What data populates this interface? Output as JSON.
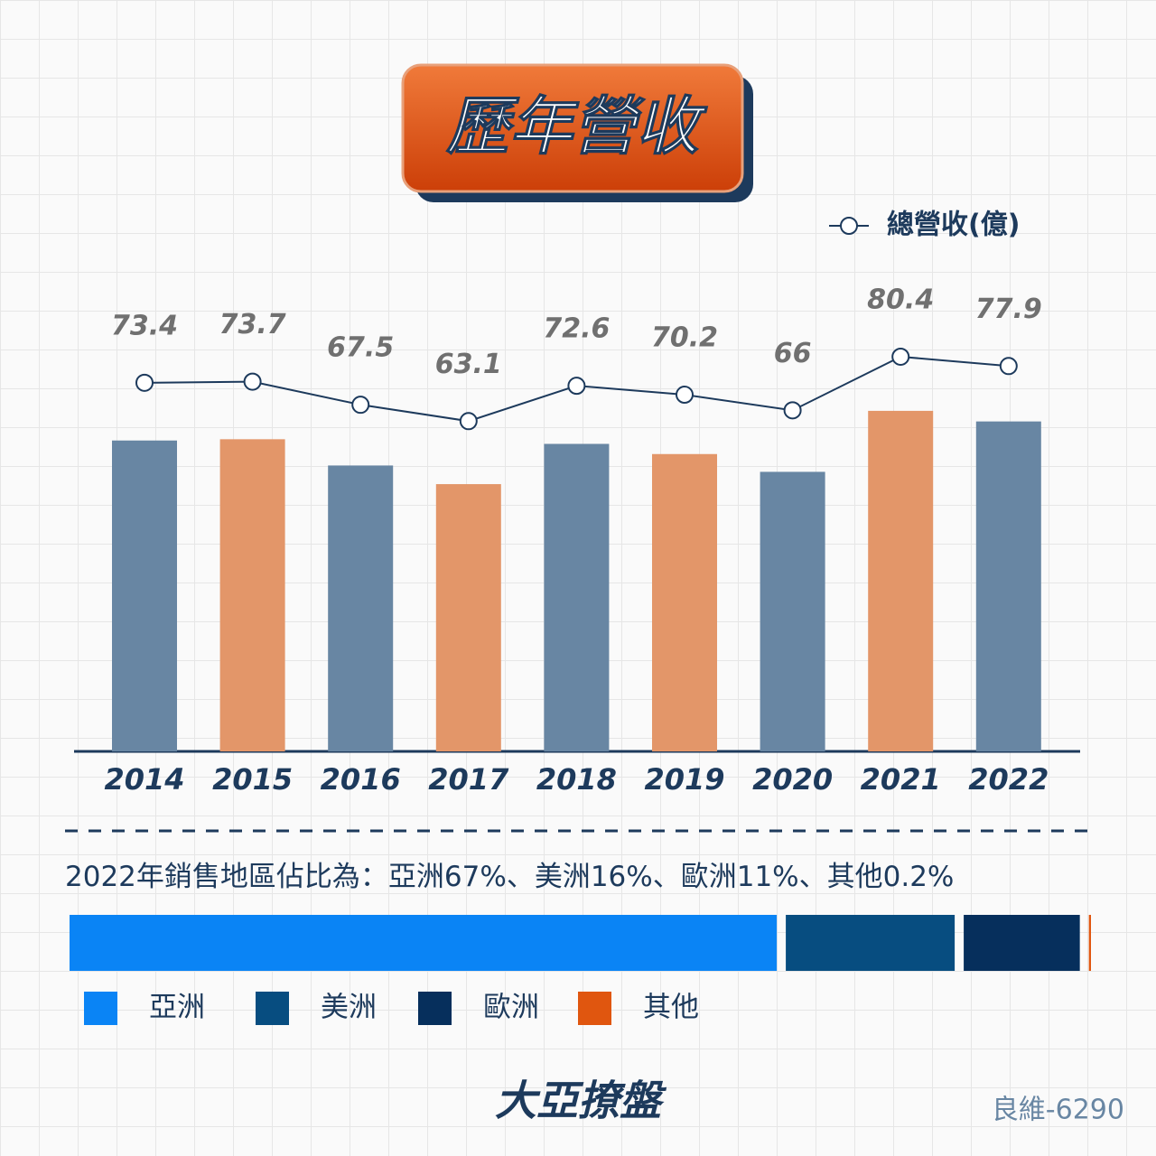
{
  "chart_data": [
    {
      "type": "bar",
      "title": "歷年營收",
      "categories": [
        "2014",
        "2015",
        "2016",
        "2017",
        "2018",
        "2019",
        "2020",
        "2021",
        "2022"
      ],
      "series": [
        {
          "name": "總營收(億)",
          "color": "#1d3a5c",
          "values": [
            73.4,
            73.7,
            67.5,
            63.1,
            72.6,
            70.2,
            66,
            80.4,
            77.9
          ]
        }
      ],
      "bar_colors": [
        "#6886a3",
        "#e39669",
        "#6886a3",
        "#e39669",
        "#6886a3",
        "#e39669",
        "#6886a3",
        "#e39669",
        "#6886a3"
      ],
      "ylim": [
        0,
        100
      ]
    },
    {
      "type": "stackedbar",
      "title": "2022年銷售地區佔比為：",
      "separator": "、",
      "categories": [
        "亞洲",
        "美洲",
        "歐洲",
        "其他"
      ],
      "values": [
        67,
        16,
        11,
        0.2
      ],
      "value_labels": [
        "67%",
        "16%",
        "11%",
        "0.2%"
      ],
      "colors": [
        "#0a84f5",
        "#074d80",
        "#062f5c",
        "#e0560f"
      ]
    }
  ],
  "footer": {
    "logo": "大亞撩盤",
    "code": "良維-6290"
  }
}
